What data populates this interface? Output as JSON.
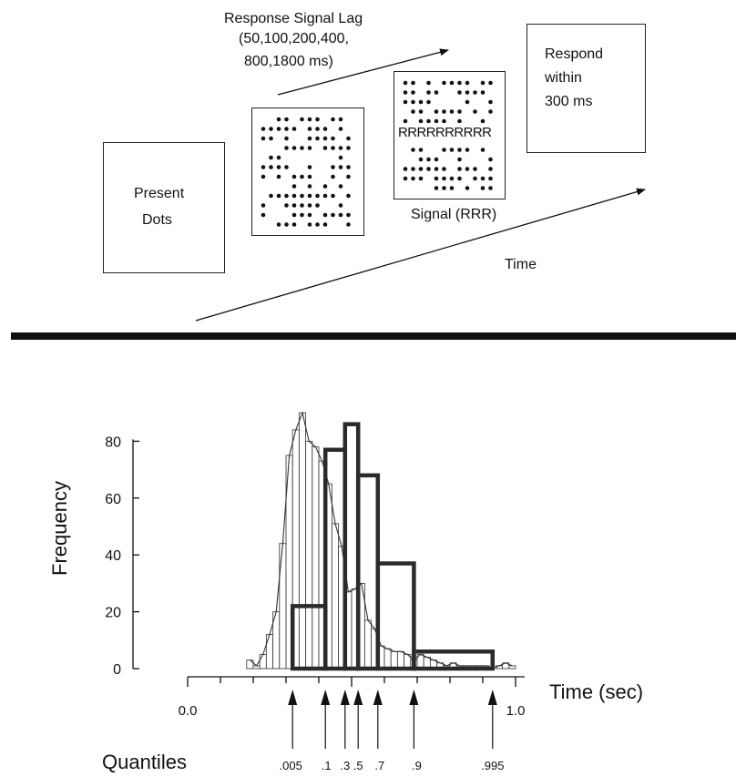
{
  "paradigm": {
    "lag_title": "Response Signal Lag",
    "lag_values_line1": "(50,100,200,400,",
    "lag_values_line2": "800,1800 ms)",
    "present_line1": "Present",
    "present_line2": "Dots",
    "signal_row": "RRRRRRRRRR",
    "signal_caption": "Signal (RRR)",
    "respond_line1": "Respond",
    "respond_line2": "within",
    "respond_line3": "300 ms",
    "time_label": "Time"
  },
  "chart_data": {
    "type": "bar",
    "ylabel": "Frequency",
    "xlabel": "Time (sec)",
    "xlim": [
      0.0,
      1.0
    ],
    "ylim": [
      0,
      90
    ],
    "x_tick_labels": [
      "0.0",
      "1.0"
    ],
    "y_tick_labels": [
      "0",
      "20",
      "40",
      "60",
      "80"
    ],
    "quantile_label": "Quantiles",
    "histogram": {
      "bin_width": 0.02,
      "bin_starts": [
        0.18,
        0.2,
        0.22,
        0.24,
        0.26,
        0.28,
        0.3,
        0.32,
        0.34,
        0.36,
        0.38,
        0.4,
        0.42,
        0.44,
        0.46,
        0.48,
        0.5,
        0.52,
        0.54,
        0.56,
        0.58,
        0.6,
        0.62,
        0.64,
        0.66,
        0.68,
        0.7,
        0.72,
        0.74,
        0.76,
        0.78,
        0.8,
        0.82,
        0.84,
        0.86,
        0.88,
        0.9,
        0.92,
        0.94,
        0.96,
        0.98
      ],
      "values": [
        3,
        1,
        5,
        12,
        20,
        44,
        75,
        84,
        90,
        80,
        78,
        73,
        65,
        51,
        43,
        27,
        28,
        30,
        17,
        14,
        8,
        7,
        6,
        6,
        5,
        3,
        5,
        4,
        3,
        2,
        1,
        2,
        1,
        1,
        1,
        1,
        1,
        0,
        1,
        2,
        1
      ]
    },
    "quantile_bars": [
      {
        "from_quantile": ".005",
        "to_quantile": ".1",
        "x0": 0.32,
        "x1": 0.42,
        "value": 22
      },
      {
        "from_quantile": ".1",
        "to_quantile": ".3",
        "x0": 0.42,
        "x1": 0.48,
        "value": 77
      },
      {
        "from_quantile": ".3",
        "to_quantile": ".5",
        "x0": 0.48,
        "x1": 0.52,
        "value": 86
      },
      {
        "from_quantile": ".5",
        "to_quantile": ".7",
        "x0": 0.52,
        "x1": 0.58,
        "value": 68
      },
      {
        "from_quantile": ".7",
        "to_quantile": ".9",
        "x0": 0.58,
        "x1": 0.69,
        "value": 37
      },
      {
        "from_quantile": ".9",
        "to_quantile": ".995",
        "x0": 0.69,
        "x1": 0.93,
        "value": 6
      }
    ],
    "quantiles": [
      {
        "label": ".005",
        "time": 0.32
      },
      {
        "label": ".1",
        "time": 0.42
      },
      {
        "label": ".3",
        "time": 0.48
      },
      {
        "label": ".5",
        "time": 0.52
      },
      {
        "label": ".7",
        "time": 0.58
      },
      {
        "label": ".9",
        "time": 0.69
      },
      {
        "label": ".995",
        "time": 0.93
      }
    ]
  }
}
